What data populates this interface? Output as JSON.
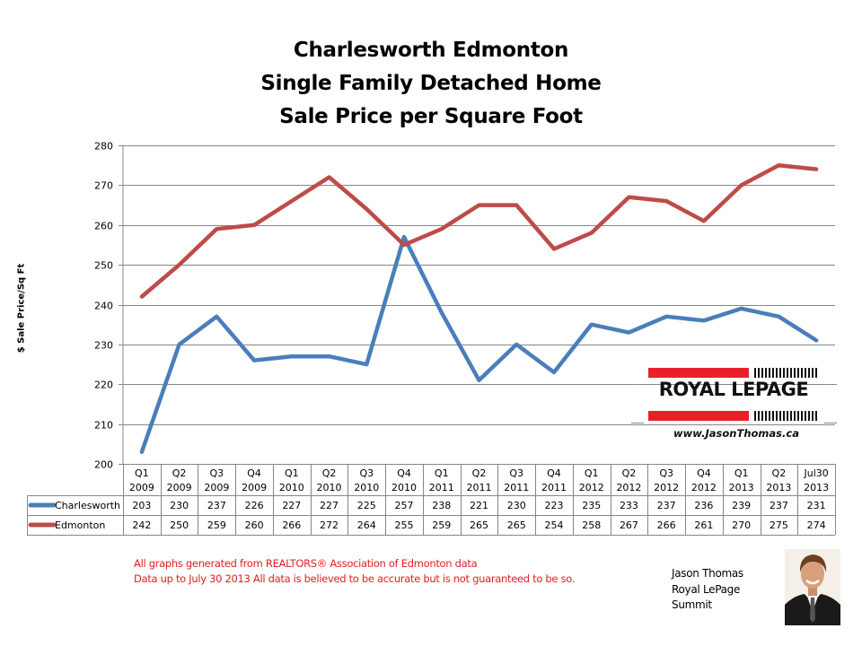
{
  "chart_data": {
    "type": "line",
    "title": [
      "Charlesworth Edmonton",
      "Single Family Detached Home",
      "Sale Price per Square Foot"
    ],
    "xlabel": "",
    "ylabel": "$ Sale Price/Sq Ft",
    "ylim": [
      200,
      280
    ],
    "yticks": [
      200,
      210,
      220,
      230,
      240,
      250,
      260,
      270,
      280
    ],
    "grid": true,
    "legend": "data-table-left",
    "categories": [
      [
        "Q1",
        "2009"
      ],
      [
        "Q2",
        "2009"
      ],
      [
        "Q3",
        "2009"
      ],
      [
        "Q4",
        "2009"
      ],
      [
        "Q1",
        "2010"
      ],
      [
        "Q2",
        "2010"
      ],
      [
        "Q3",
        "2010"
      ],
      [
        "Q4",
        "2010"
      ],
      [
        "Q1",
        "2011"
      ],
      [
        "Q2",
        "2011"
      ],
      [
        "Q3",
        "2011"
      ],
      [
        "Q4",
        "2011"
      ],
      [
        "Q1",
        "2012"
      ],
      [
        "Q2",
        "2012"
      ],
      [
        "Q3",
        "2012"
      ],
      [
        "Q4",
        "2012"
      ],
      [
        "Q1",
        "2013"
      ],
      [
        "Q2",
        "2013"
      ],
      [
        "Jul30",
        "2013"
      ]
    ],
    "series": [
      {
        "name": "Charlesworth",
        "color": "#4a7ebb",
        "values": [
          203,
          230,
          237,
          226,
          227,
          227,
          225,
          257,
          238,
          221,
          230,
          223,
          235,
          233,
          237,
          236,
          239,
          237,
          231
        ]
      },
      {
        "name": "Edmonton",
        "color": "#be4b48",
        "values": [
          242,
          250,
          259,
          260,
          266,
          272,
          264,
          255,
          259,
          265,
          265,
          254,
          258,
          267,
          266,
          261,
          270,
          275,
          274
        ]
      }
    ]
  },
  "logo": {
    "brand": "ROYAL LEPAGE",
    "url": "www.JasonThomas.ca",
    "accent": "#e8202a"
  },
  "footer": {
    "note_line1": "All graphs generated from REALTORS® Association of Edmonton data",
    "note_line2": "Data up to  July 30 2013  All data is believed to be accurate but is not guaranteed to be so.",
    "agent_name": "Jason Thomas",
    "agent_company": "Royal LePage",
    "agent_office": "Summit"
  }
}
